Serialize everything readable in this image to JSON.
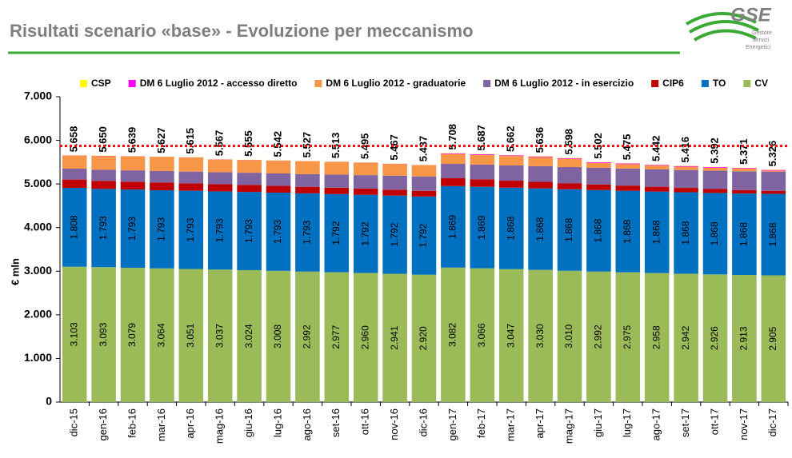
{
  "header": {
    "title": "Risultati scenario «base» - Evoluzione per meccanismo",
    "logo": "GSE",
    "logo_tagline": [
      "Gestore",
      "Servizi",
      "Energetici"
    ]
  },
  "chart_data": {
    "type": "stacked_bar",
    "y_label": "€ mln",
    "categories": [
      "dic-15",
      "gen-16",
      "feb-16",
      "mar-16",
      "apr-16",
      "mag-16",
      "giu-16",
      "lug-16",
      "ago-16",
      "set-16",
      "ott-16",
      "nov-16",
      "dic-16",
      "gen-17",
      "feb-17",
      "mar-17",
      "apr-17",
      "mag-17",
      "giu-17",
      "lug-17",
      "ago-17",
      "set-17",
      "ott-17",
      "nov-17",
      "dic-17"
    ],
    "series": [
      {
        "name": "CSP",
        "color": "#ffff00",
        "values": [
          5,
          5,
          5,
          5,
          5,
          5,
          5,
          5,
          5,
          5,
          5,
          5,
          5,
          5,
          5,
          5,
          5,
          5,
          5,
          5,
          5,
          5,
          5,
          5,
          5
        ]
      },
      {
        "name": "DM 6 Luglio 2012 - accesso diretto",
        "color": "#ff00ff",
        "values": [
          5,
          5,
          5,
          5,
          5,
          5,
          5,
          5,
          5,
          5,
          5,
          5,
          5,
          15,
          15,
          15,
          15,
          15,
          15,
          15,
          15,
          15,
          15,
          15,
          15
        ]
      },
      {
        "name": "DM 6 Luglio 2012 - graduatorie",
        "color": "#f79646",
        "values": [
          297,
          314,
          317,
          320,
          321,
          287,
          288,
          291,
          292,
          289,
          283,
          269,
          255,
          227,
          222,
          217,
          208,
          190,
          112,
          102,
          86,
          76,
          68,
          60,
          23
        ]
      },
      {
        "name": "DM 6 Luglio 2012 - in esercizio",
        "color": "#8064a2",
        "values": [
          250,
          255,
          260,
          265,
          270,
          275,
          280,
          285,
          290,
          300,
          310,
          320,
          330,
          330,
          340,
          350,
          360,
          370,
          380,
          390,
          400,
          410,
          420,
          430,
          440
        ]
      },
      {
        "name": "CIP6",
        "color": "#c00000",
        "values": [
          190,
          185,
          180,
          175,
          170,
          165,
          160,
          155,
          150,
          145,
          140,
          135,
          130,
          180,
          170,
          160,
          150,
          140,
          130,
          120,
          110,
          100,
          90,
          80,
          70
        ]
      },
      {
        "name": "TO",
        "color": "#0070c0",
        "values": [
          1808,
          1793,
          1793,
          1793,
          1793,
          1793,
          1793,
          1793,
          1793,
          1792,
          1792,
          1792,
          1792,
          1869,
          1869,
          1868,
          1868,
          1868,
          1868,
          1868,
          1868,
          1868,
          1868,
          1868,
          1868
        ],
        "value_labels": [
          "1.808",
          "1.793",
          "1.793",
          "1.793",
          "1.793",
          "1.793",
          "1.793",
          "1.793",
          "1.793",
          "1.792",
          "1.792",
          "1.792",
          "1.792",
          "1.869",
          "1.869",
          "1.868",
          "1.868",
          "1.868",
          "1.868",
          "1.868",
          "1.868",
          "1.868",
          "1.868",
          "1.868",
          "1.868"
        ]
      },
      {
        "name": "CV",
        "color": "#9bbb59",
        "values": [
          3103,
          3093,
          3079,
          3064,
          3051,
          3037,
          3024,
          3008,
          2992,
          2977,
          2960,
          2941,
          2920,
          3082,
          3066,
          3047,
          3030,
          3010,
          2992,
          2975,
          2958,
          2942,
          2926,
          2913,
          2905
        ],
        "value_labels": [
          "3.103",
          "3.093",
          "3.079",
          "3.064",
          "3.051",
          "3.037",
          "3.024",
          "3.008",
          "2.992",
          "2.977",
          "2.960",
          "2.941",
          "2.920",
          "3.082",
          "3.066",
          "3.047",
          "3.030",
          "3.010",
          "2.992",
          "2.975",
          "2.958",
          "2.942",
          "2.926",
          "2.913",
          "2.905"
        ]
      }
    ],
    "totals": {
      "values": [
        5658,
        5650,
        5639,
        5627,
        5615,
        5567,
        5555,
        5542,
        5527,
        5513,
        5495,
        5467,
        5437,
        5708,
        5687,
        5662,
        5636,
        5598,
        5502,
        5475,
        5442,
        5416,
        5392,
        5371,
        5326
      ],
      "value_labels": [
        "5.658",
        "5.650",
        "5.639",
        "5.627",
        "5.615",
        "5.567",
        "5.555",
        "5.542",
        "5.527",
        "5.513",
        "5.495",
        "5.467",
        "5.437",
        "5.708",
        "5.687",
        "5.662",
        "5.636",
        "5.598",
        "5.502",
        "5.475",
        "5.442",
        "5.416",
        "5.392",
        "5.371",
        "5.326"
      ]
    },
    "reference_line": {
      "value": 5870,
      "color": "#ff0000"
    },
    "ylim": [
      0,
      7000
    ],
    "yticks": [
      {
        "value": 0,
        "label": "0"
      },
      {
        "value": 1000,
        "label": "1.000"
      },
      {
        "value": 2000,
        "label": "2.000"
      },
      {
        "value": 3000,
        "label": "3.000"
      },
      {
        "value": 4000,
        "label": "4.000"
      },
      {
        "value": 5000,
        "label": "5.000"
      },
      {
        "value": 6000,
        "label": "6.000"
      },
      {
        "value": 7000,
        "label": "7.000"
      }
    ],
    "legend": "top"
  }
}
